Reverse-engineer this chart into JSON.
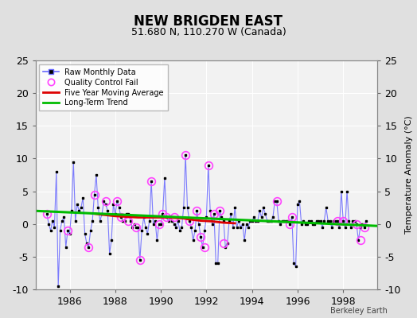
{
  "title": "NEW BRIGDEN EAST",
  "subtitle": "51.680 N, 110.270 W (Canada)",
  "ylabel_right": "Temperature Anomaly (°C)",
  "credit": "Berkeley Earth",
  "xlim": [
    1984.5,
    1999.5
  ],
  "ylim": [
    -10,
    25
  ],
  "yticks_left": [
    -10,
    -5,
    0,
    5,
    10,
    15,
    20,
    25
  ],
  "xticks": [
    1986,
    1988,
    1990,
    1992,
    1994,
    1996,
    1998
  ],
  "bg_color": "#e0e0e0",
  "plot_bg_color": "#f2f2f2",
  "grid_color": "#ffffff",
  "raw_x": [
    1985.0,
    1985.083,
    1985.167,
    1985.25,
    1985.333,
    1985.417,
    1985.5,
    1985.583,
    1985.667,
    1985.75,
    1985.833,
    1985.917,
    1986.0,
    1986.083,
    1986.167,
    1986.25,
    1986.333,
    1986.417,
    1986.5,
    1986.583,
    1986.667,
    1986.75,
    1986.833,
    1986.917,
    1987.0,
    1987.083,
    1987.167,
    1987.25,
    1987.333,
    1987.417,
    1987.5,
    1987.583,
    1987.667,
    1987.75,
    1987.833,
    1987.917,
    1988.0,
    1988.083,
    1988.167,
    1988.25,
    1988.333,
    1988.417,
    1988.5,
    1988.583,
    1988.667,
    1988.75,
    1988.833,
    1988.917,
    1989.0,
    1989.083,
    1989.167,
    1989.25,
    1989.333,
    1989.417,
    1989.5,
    1989.583,
    1989.667,
    1989.75,
    1989.833,
    1989.917,
    1990.0,
    1990.083,
    1990.167,
    1990.25,
    1990.333,
    1990.417,
    1990.5,
    1990.583,
    1990.667,
    1990.75,
    1990.833,
    1990.917,
    1991.0,
    1991.083,
    1991.167,
    1991.25,
    1991.333,
    1991.417,
    1991.5,
    1991.583,
    1991.667,
    1991.75,
    1991.833,
    1991.917,
    1992.0,
    1992.083,
    1992.167,
    1992.25,
    1992.333,
    1992.417,
    1992.5,
    1992.583,
    1992.667,
    1992.75,
    1992.833,
    1992.917,
    1993.0,
    1993.083,
    1993.167,
    1993.25,
    1993.333,
    1993.417,
    1993.5,
    1993.583,
    1993.667,
    1993.75,
    1993.833,
    1993.917,
    1994.0,
    1994.083,
    1994.167,
    1994.25,
    1994.333,
    1994.417,
    1994.5,
    1994.583,
    1994.667,
    1994.75,
    1994.833,
    1994.917,
    1995.0,
    1995.083,
    1995.167,
    1995.25,
    1995.333,
    1995.417,
    1995.5,
    1995.583,
    1995.667,
    1995.75,
    1995.833,
    1995.917,
    1996.0,
    1996.083,
    1996.167,
    1996.25,
    1996.333,
    1996.417,
    1996.5,
    1996.583,
    1996.667,
    1996.75,
    1996.833,
    1996.917,
    1997.0,
    1997.083,
    1997.167,
    1997.25,
    1997.333,
    1997.417,
    1997.5,
    1997.583,
    1997.667,
    1997.75,
    1997.833,
    1997.917,
    1998.0,
    1998.083,
    1998.167,
    1998.25,
    1998.333,
    1998.417,
    1998.5,
    1998.583,
    1998.667,
    1998.75,
    1998.833,
    1998.917,
    1999.0
  ],
  "raw_y": [
    1.5,
    0.0,
    -1.0,
    0.5,
    -0.5,
    8.0,
    -9.5,
    -1.0,
    0.5,
    1.0,
    -3.5,
    -1.0,
    -1.5,
    2.0,
    9.5,
    0.5,
    3.0,
    2.0,
    2.5,
    4.0,
    -1.5,
    -3.0,
    -3.5,
    -1.0,
    0.5,
    4.5,
    7.5,
    2.5,
    0.5,
    1.5,
    3.5,
    3.0,
    2.0,
    -4.5,
    -2.5,
    3.0,
    1.5,
    3.5,
    2.5,
    1.0,
    0.5,
    0.5,
    1.5,
    1.5,
    0.5,
    -0.5,
    0.0,
    -0.5,
    -0.5,
    -5.5,
    -1.0,
    1.0,
    -0.5,
    -1.5,
    0.5,
    6.5,
    0.0,
    0.5,
    -2.5,
    0.0,
    0.0,
    1.5,
    7.0,
    1.0,
    0.5,
    1.0,
    0.5,
    0.0,
    -0.5,
    0.5,
    -1.0,
    -0.5,
    2.5,
    10.5,
    2.5,
    0.5,
    -0.5,
    -2.5,
    -1.0,
    2.0,
    0.0,
    -2.0,
    -3.5,
    -1.0,
    1.0,
    9.0,
    2.0,
    0.0,
    1.5,
    -6.0,
    -6.0,
    2.0,
    1.0,
    0.5,
    -3.5,
    -3.0,
    0.5,
    1.5,
    -0.5,
    2.5,
    -0.5,
    0.5,
    -0.5,
    0.0,
    -2.5,
    0.0,
    -0.5,
    0.5,
    0.5,
    1.0,
    0.5,
    0.5,
    2.0,
    1.0,
    2.5,
    1.5,
    0.5,
    0.5,
    0.5,
    1.0,
    3.5,
    3.5,
    0.5,
    0.0,
    0.5,
    0.5,
    0.5,
    0.5,
    0.0,
    1.0,
    -6.0,
    -6.5,
    3.0,
    3.5,
    0.0,
    0.5,
    0.0,
    0.0,
    0.5,
    0.5,
    0.0,
    0.0,
    0.5,
    0.5,
    0.5,
    -0.5,
    0.5,
    2.5,
    0.5,
    0.5,
    -0.5,
    0.5,
    0.5,
    0.5,
    -0.5,
    5.0,
    0.5,
    -0.5,
    5.0,
    0.5,
    -0.5,
    0.5,
    0.5,
    0.0,
    -2.5,
    -0.5,
    0.0,
    -0.5,
    0.5
  ],
  "qc_fail_x": [
    1985.0,
    1985.917,
    1986.833,
    1987.083,
    1987.583,
    1988.083,
    1988.25,
    1988.583,
    1988.917,
    1989.083,
    1989.583,
    1989.917,
    1990.083,
    1990.25,
    1990.583,
    1991.083,
    1991.25,
    1991.583,
    1991.75,
    1991.917,
    1992.083,
    1992.333,
    1992.583,
    1992.75,
    1995.083,
    1995.667,
    1995.75,
    1997.75,
    1998.0,
    1998.583,
    1998.75,
    1998.917
  ],
  "qc_fail_y": [
    1.5,
    -1.0,
    -3.5,
    4.5,
    3.5,
    3.5,
    1.0,
    0.5,
    -0.5,
    -5.5,
    6.5,
    0.0,
    1.5,
    1.0,
    1.0,
    10.5,
    0.5,
    2.0,
    -2.0,
    -3.5,
    9.0,
    1.5,
    2.0,
    -3.0,
    3.5,
    0.0,
    1.0,
    0.5,
    0.5,
    0.0,
    -2.5,
    -0.5
  ],
  "moving_avg_x": [
    1987.0,
    1987.25,
    1987.5,
    1987.75,
    1988.0,
    1988.25,
    1988.5,
    1988.75,
    1989.0,
    1989.25,
    1989.5,
    1989.75,
    1990.0,
    1990.25,
    1990.5,
    1990.75,
    1991.0,
    1991.25,
    1991.5,
    1991.75,
    1992.0,
    1992.25,
    1992.5,
    1992.75,
    1993.0,
    1993.25
  ],
  "moving_avg_y": [
    1.6,
    1.5,
    1.4,
    1.3,
    1.2,
    1.15,
    1.1,
    1.05,
    1.0,
    1.0,
    1.0,
    1.0,
    1.0,
    1.0,
    0.95,
    0.9,
    0.85,
    0.7,
    0.6,
    0.5,
    0.45,
    0.4,
    0.3,
    0.2,
    0.15,
    0.1
  ],
  "trend_x": [
    1984.5,
    1999.5
  ],
  "trend_y": [
    2.0,
    -0.3
  ],
  "line_color": "#6666ff",
  "marker_color": "#000000",
  "qc_color": "#ff44ff",
  "moving_avg_color": "#dd0000",
  "trend_color": "#00bb00"
}
